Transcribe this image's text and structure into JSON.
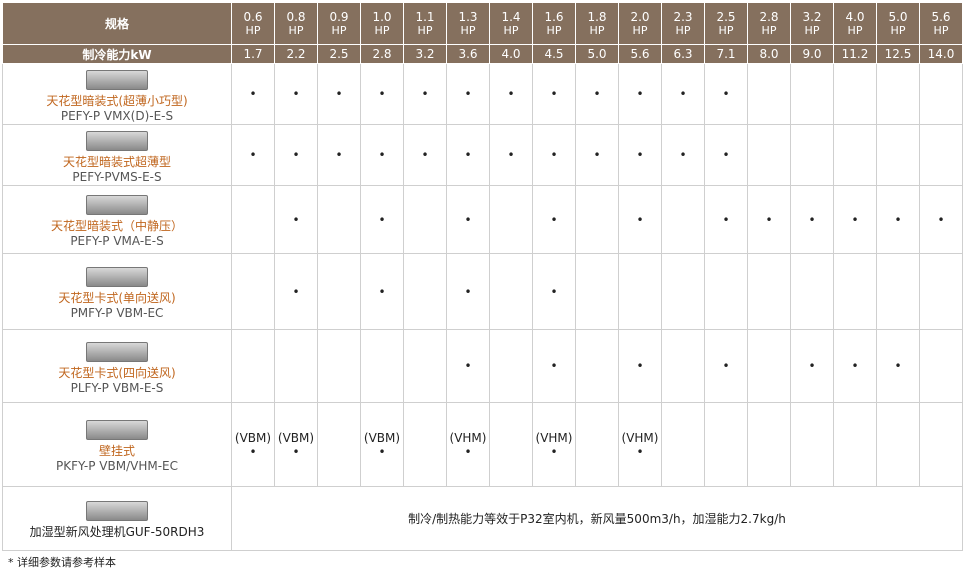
{
  "header": {
    "spec_label": "规格",
    "hp_unit": "HP",
    "hp": [
      "0.6",
      "0.8",
      "0.9",
      "1.0",
      "1.1",
      "1.3",
      "1.4",
      "1.6",
      "1.8",
      "2.0",
      "2.3",
      "2.5",
      "2.8",
      "3.2",
      "4.0",
      "5.0",
      "5.6"
    ],
    "capacity_label": "制冷能力kW",
    "capacity": [
      "1.7",
      "2.2",
      "2.5",
      "2.8",
      "3.2",
      "3.6",
      "4.0",
      "4.5",
      "5.0",
      "5.6",
      "6.3",
      "7.1",
      "8.0",
      "9.0",
      "11.2",
      "12.5",
      "14.0"
    ]
  },
  "rows": [
    {
      "name": "天花型暗装式(超薄小巧型)",
      "model": "PEFY-P VMX(D)-E-S",
      "cells": [
        "•",
        "•",
        "•",
        "•",
        "•",
        "•",
        "•",
        "•",
        "•",
        "•",
        "•",
        "•",
        null,
        null,
        null,
        null,
        null
      ]
    },
    {
      "name": "天花型暗装式超薄型",
      "model": "PEFY-PVMS-E-S",
      "cells": [
        "•",
        "•",
        "•",
        "•",
        "•",
        "•",
        "•",
        "•",
        "•",
        "•",
        "•",
        "•",
        null,
        null,
        null,
        null,
        null
      ]
    },
    {
      "name": "天花型暗装式（中静压）",
      "model": "PEFY-P VMA-E-S",
      "cells": [
        null,
        "•",
        null,
        "•",
        null,
        "•",
        null,
        "•",
        null,
        "•",
        null,
        "•",
        "•",
        "•",
        "•",
        "•",
        "•"
      ]
    },
    {
      "name": "天花型卡式(单向送风)",
      "model": "PMFY-P VBM-EC",
      "cells": [
        null,
        "•",
        null,
        "•",
        null,
        "•",
        null,
        "•",
        null,
        null,
        null,
        null,
        null,
        null,
        null,
        null,
        null
      ]
    },
    {
      "name": "天花型卡式(四向送风)",
      "model": "PLFY-P VBM-E-S",
      "cells": [
        null,
        null,
        null,
        null,
        null,
        "•",
        null,
        "•",
        null,
        "•",
        null,
        "•",
        null,
        "•",
        "•",
        "•",
        null
      ]
    },
    {
      "name": "壁挂式",
      "model": "PKFY-P VBM/VHM-EC",
      "cells": [
        {
          "variant": "(VBM)",
          "dot": "•"
        },
        {
          "variant": "(VBM)",
          "dot": "•"
        },
        null,
        {
          "variant": "(VBM)",
          "dot": "•"
        },
        null,
        {
          "variant": "(VHM)",
          "dot": "•"
        },
        null,
        {
          "variant": "(VHM)",
          "dot": "•"
        },
        null,
        {
          "variant": "(VHM)",
          "dot": "•"
        },
        null,
        null,
        null,
        null,
        null,
        null,
        null
      ]
    },
    {
      "name": "加湿型新风处理机GUF-50RDH3",
      "note": "制冷/制热能力等效于P32室内机，新风量500m3/h，加湿能力2.7kg/h"
    }
  ],
  "footnote": "* 详细参数请参考样本"
}
